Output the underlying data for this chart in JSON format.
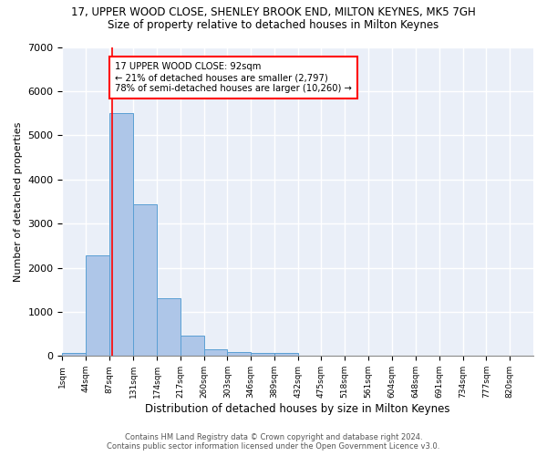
{
  "title_line1": "17, UPPER WOOD CLOSE, SHENLEY BROOK END, MILTON KEYNES, MK5 7GH",
  "title_line2": "Size of property relative to detached houses in Milton Keynes",
  "xlabel": "Distribution of detached houses by size in Milton Keynes",
  "ylabel": "Number of detached properties",
  "annotation_line1": "17 UPPER WOOD CLOSE: 92sqm",
  "annotation_line2": "← 21% of detached houses are smaller (2,797)",
  "annotation_line3": "78% of semi-detached houses are larger (10,260) →",
  "property_size": 92,
  "vline_x": 92,
  "bin_edges": [
    1,
    44,
    87,
    131,
    174,
    217,
    260,
    303,
    346,
    389,
    432,
    475,
    518,
    561,
    604,
    648,
    691,
    734,
    777,
    820,
    863
  ],
  "bar_heights": [
    70,
    2270,
    5500,
    3430,
    1300,
    460,
    160,
    90,
    70,
    70,
    0,
    0,
    0,
    0,
    0,
    0,
    0,
    0,
    0,
    0
  ],
  "bar_color": "#aec6e8",
  "bar_edge_color": "#5a9fd4",
  "vline_color": "red",
  "background_color": "#eaeff8",
  "grid_color": "white",
  "annotation_box_color": "white",
  "annotation_box_edge": "red",
  "ylim": [
    0,
    7000
  ],
  "yticks": [
    0,
    1000,
    2000,
    3000,
    4000,
    5000,
    6000,
    7000
  ],
  "footer_line1": "Contains HM Land Registry data © Crown copyright and database right 2024.",
  "footer_line2": "Contains public sector information licensed under the Open Government Licence v3.0."
}
